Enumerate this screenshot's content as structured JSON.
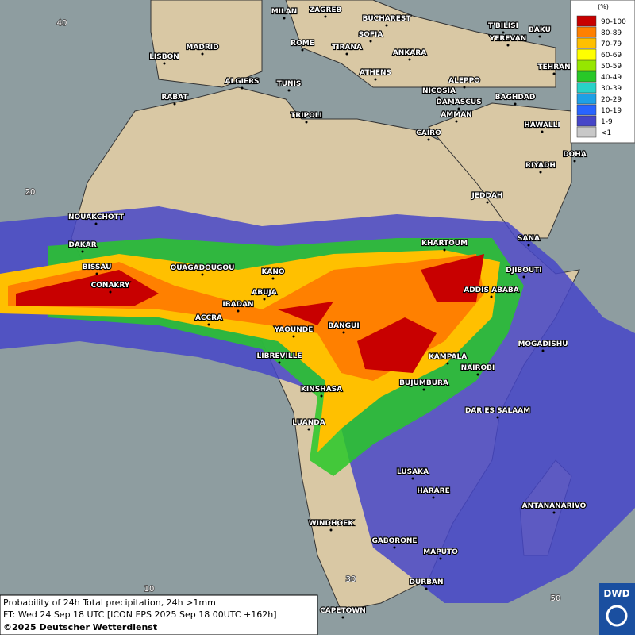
{
  "legend": {
    "title": "(%)",
    "items": [
      {
        "label": "90-100",
        "color": "#c80000"
      },
      {
        "label": "80-89",
        "color": "#ff8000"
      },
      {
        "label": "70-79",
        "color": "#ffc000"
      },
      {
        "label": "60-69",
        "color": "#ffff00"
      },
      {
        "label": "50-59",
        "color": "#96e600"
      },
      {
        "label": "40-49",
        "color": "#28c828"
      },
      {
        "label": "30-39",
        "color": "#28d2c8"
      },
      {
        "label": "20-29",
        "color": "#1ea0e6"
      },
      {
        "label": "10-19",
        "color": "#2864ff"
      },
      {
        "label": "1-9",
        "color": "#4646c8"
      },
      {
        "label": "<1",
        "color": "#c8c8c8"
      }
    ]
  },
  "cities": [
    "MILAN",
    "ZAGREB",
    "BUCHAREST",
    "T'BILISI",
    "BAKU",
    "SOFIA",
    "YEREVAN",
    "MADRID",
    "ROME",
    "TIRANA",
    "ANKARA",
    "TEHRAN",
    "LISBON",
    "ATHENS",
    "ALGIERS",
    "TUNIS",
    "ALEPPO",
    "RABAT",
    "NICOSIA",
    "BAGHDAD",
    "DAMASCUS",
    "TRIPOLI",
    "AMMAN",
    "HAWALLI",
    "CAIRO",
    "DOHA",
    "RIYADH",
    "JEDDAH",
    "NOUAKCHOTT",
    "SANA",
    "KHARTOUM",
    "DAKAR",
    "BISSAU",
    "OUAGADOUGOU",
    "DJIBOUTI",
    "KANO",
    "CONAKRY",
    "ABUJA",
    "ADDIS ABABA",
    "IBADAN",
    "ACCRA",
    "BANGUI",
    "YAOUNDE",
    "MOGADISHU",
    "LIBREVILLE",
    "KAMPALA",
    "NAIROBI",
    "BUJUMBURA",
    "KINSHASA",
    "DAR ES SALAAM",
    "LUANDA",
    "LUSAKA",
    "HARARE",
    "ANTANANARIVO",
    "WINDHOEK",
    "GABORONE",
    "MAPUTO",
    "DURBAN",
    "CAPETOWN"
  ],
  "grid_labels": [
    "40",
    "20",
    "10",
    "30",
    "50"
  ],
  "footer": {
    "line1": "Probability of 24h Total precipitation, 24h >1mm",
    "line2": "FT: Wed 24 Sep 18 UTC [ICON EPS 2025 Sep 18 00UTC +162h]",
    "line3": "©2025 Deutscher Wetterdienst"
  },
  "logo": "DWD"
}
